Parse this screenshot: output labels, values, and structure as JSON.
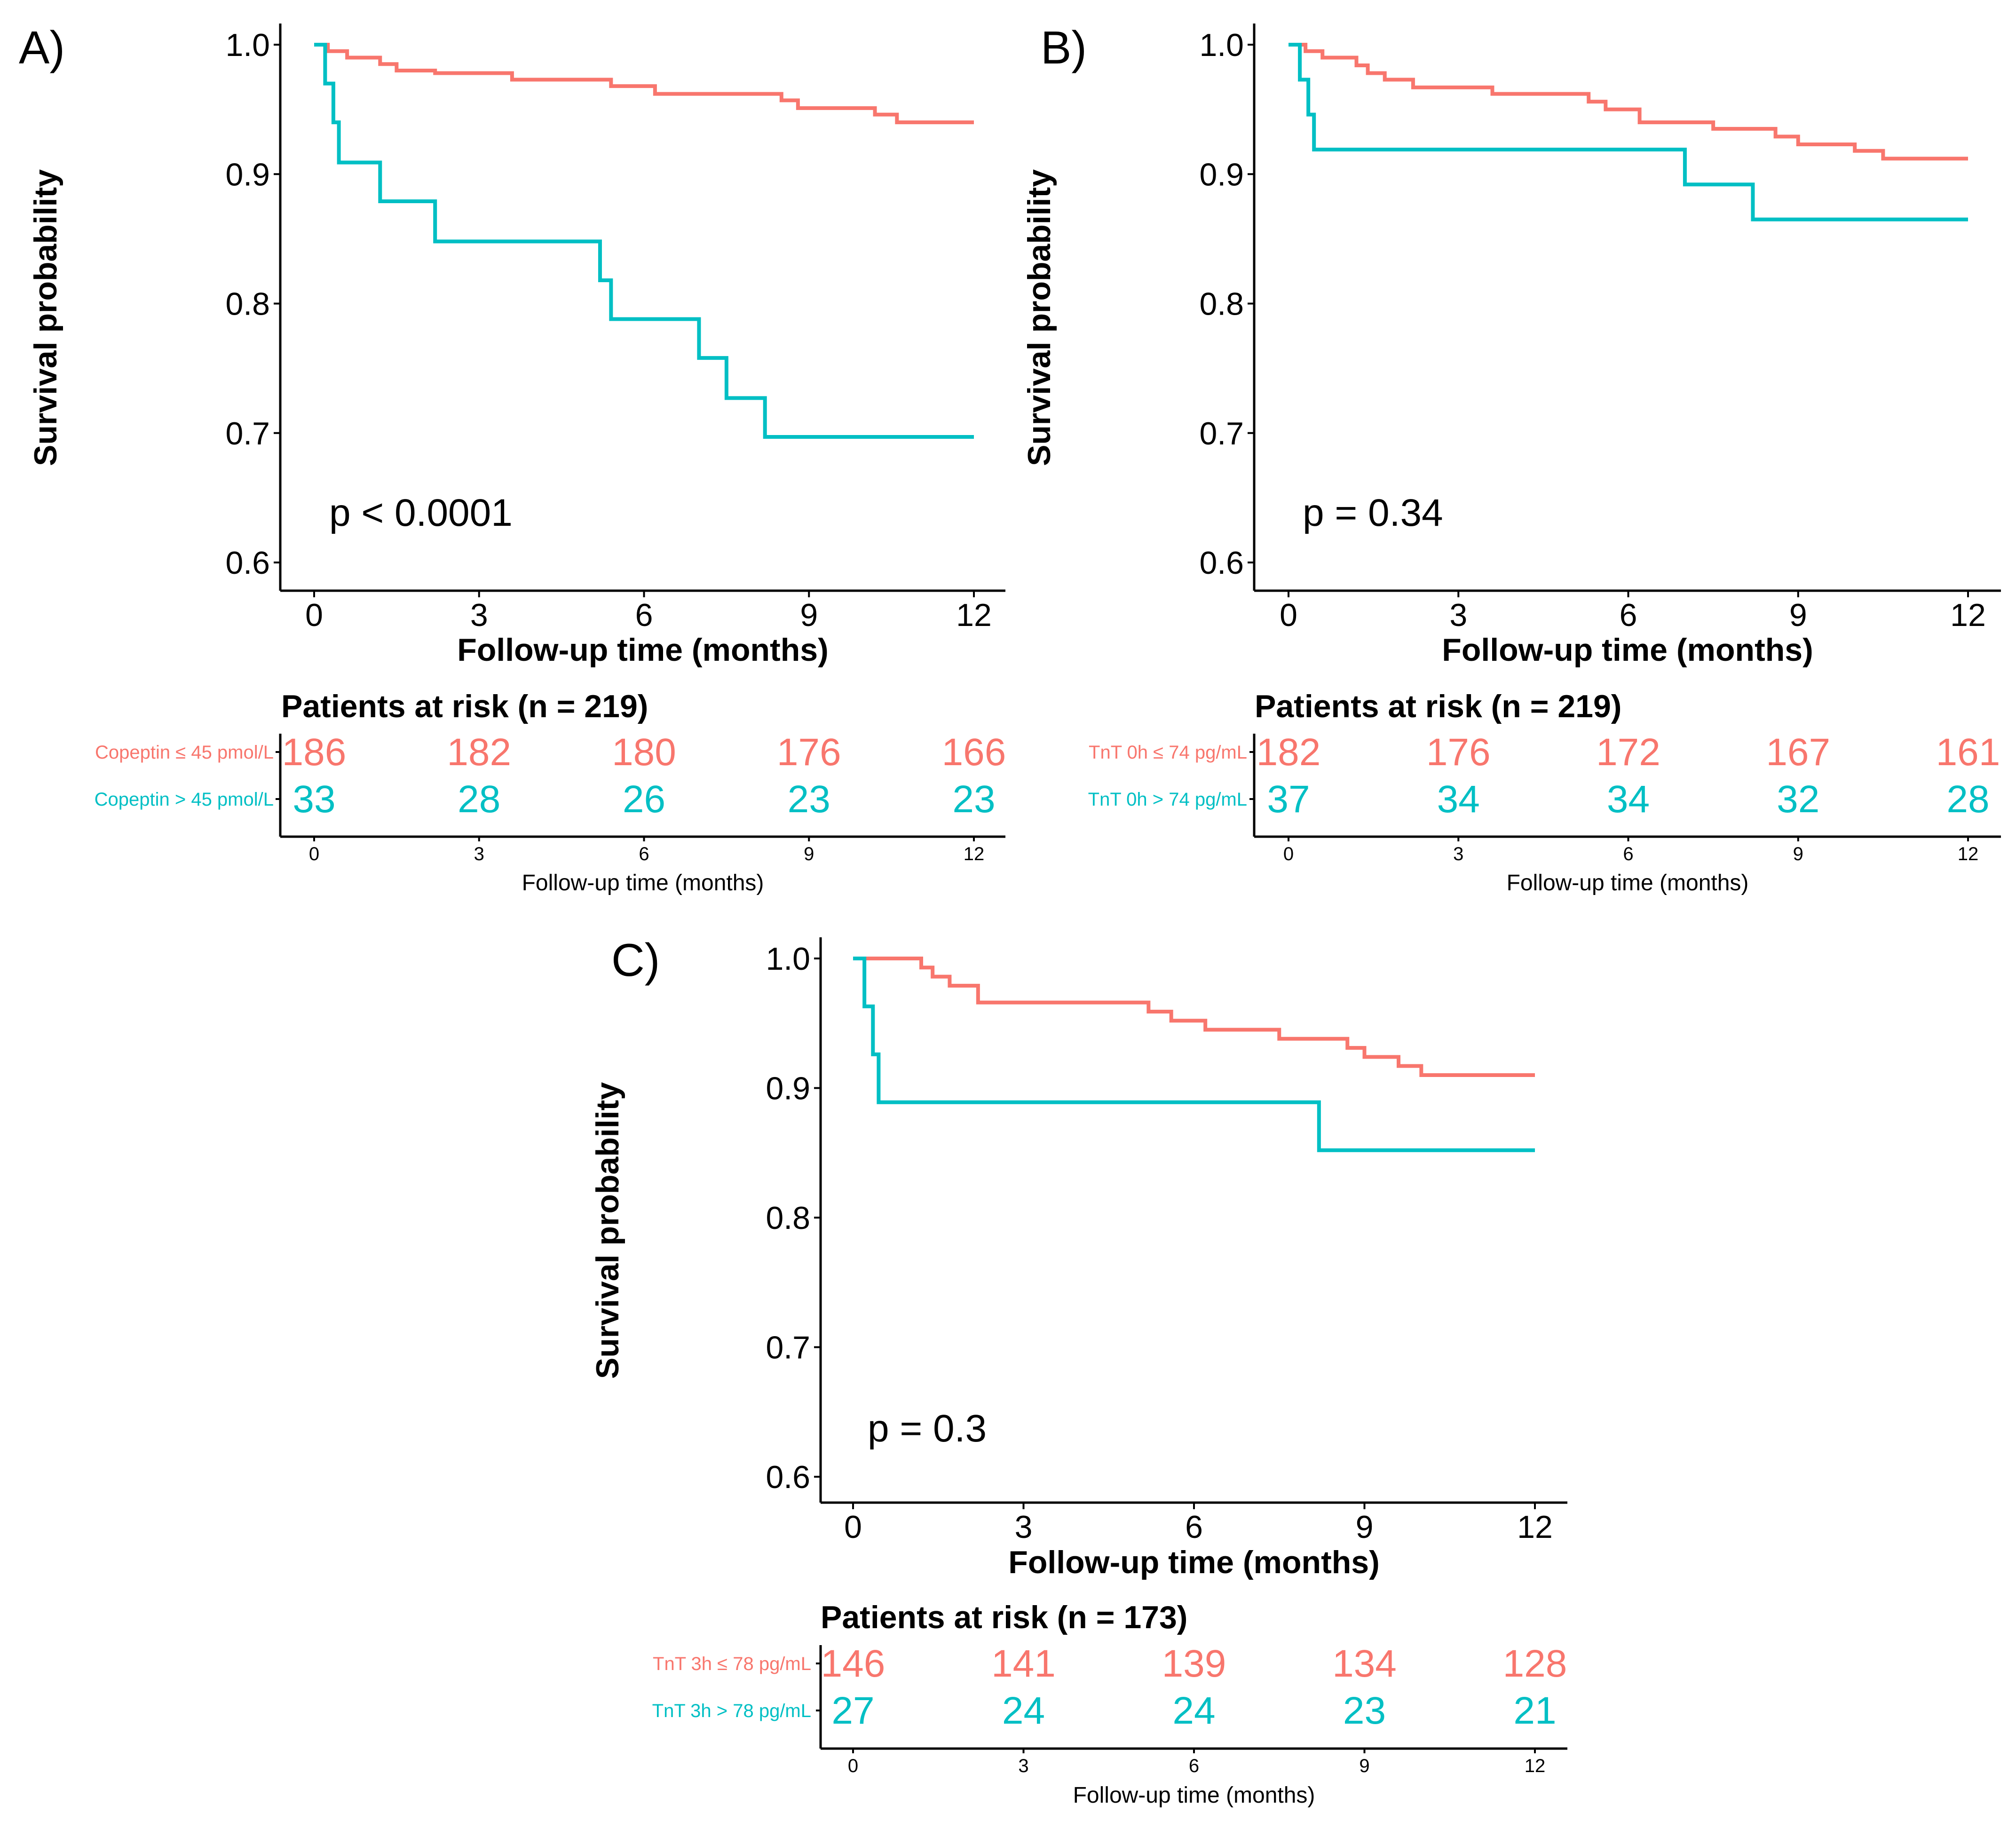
{
  "colors": {
    "series1": "#F8766D",
    "series2": "#00BFC4",
    "axis": "#000000"
  },
  "chart_data": [
    {
      "type": "line",
      "panel": "A)",
      "title": "",
      "xlabel": "Follow-up time (months)",
      "ylabel": "Survival probability",
      "xlim": [
        0,
        12
      ],
      "ylim": [
        0.6,
        1.0
      ],
      "xticks": [
        "0",
        "3",
        "6",
        "9",
        "12"
      ],
      "yticks": [
        "0.6",
        "0.7",
        "0.8",
        "0.9",
        "1.0"
      ],
      "p_value": "p < 0.0001",
      "series": [
        {
          "name": "Copeptin ≤ 45 pmol/L",
          "color": "#F8766D",
          "x": [
            0,
            0.25,
            0.6,
            1.2,
            1.5,
            2.2,
            3.6,
            5.4,
            6.2,
            8.5,
            8.8,
            10.2,
            10.6,
            12
          ],
          "y": [
            1.0,
            0.995,
            0.99,
            0.985,
            0.98,
            0.978,
            0.973,
            0.968,
            0.962,
            0.957,
            0.951,
            0.946,
            0.94,
            0.94
          ]
        },
        {
          "name": "Copeptin > 45 pmol/L",
          "color": "#00BFC4",
          "x": [
            0,
            0.2,
            0.35,
            0.45,
            1.2,
            2.2,
            5.2,
            5.4,
            7.0,
            7.5,
            8.2,
            12
          ],
          "y": [
            1.0,
            0.97,
            0.94,
            0.909,
            0.879,
            0.848,
            0.818,
            0.788,
            0.758,
            0.727,
            0.697,
            0.697
          ]
        }
      ],
      "risk_table": {
        "title": "Patients at risk (n = 219)",
        "xlabel": "Follow-up time (months)",
        "xticks": [
          "0",
          "3",
          "6",
          "9",
          "12"
        ],
        "rows": [
          {
            "label": "Copeptin ≤ 45 pmol/L",
            "color": "#F8766D",
            "values": [
              "186",
              "182",
              "180",
              "176",
              "166"
            ]
          },
          {
            "label": "Copeptin > 45 pmol/L",
            "color": "#00BFC4",
            "values": [
              "33",
              "28",
              "26",
              "23",
              "23"
            ]
          }
        ]
      }
    },
    {
      "type": "line",
      "panel": "B)",
      "title": "",
      "xlabel": "Follow-up time (months)",
      "ylabel": "Survival probability",
      "xlim": [
        0,
        12
      ],
      "ylim": [
        0.6,
        1.0
      ],
      "xticks": [
        "0",
        "3",
        "6",
        "9",
        "12"
      ],
      "yticks": [
        "0.6",
        "0.7",
        "0.8",
        "0.9",
        "1.0"
      ],
      "p_value": "p = 0.34",
      "series": [
        {
          "name": "TnT 0h ≤ 74 pg/mL",
          "color": "#F8766D",
          "x": [
            0,
            0.3,
            0.6,
            1.2,
            1.4,
            1.7,
            2.2,
            3.6,
            5.3,
            5.6,
            6.2,
            7.5,
            8.6,
            9.0,
            10.0,
            10.5,
            11.0,
            12
          ],
          "y": [
            1.0,
            0.995,
            0.99,
            0.984,
            0.978,
            0.973,
            0.967,
            0.962,
            0.956,
            0.95,
            0.94,
            0.935,
            0.929,
            0.923,
            0.918,
            0.912,
            0.912,
            0.912
          ]
        },
        {
          "name": "TnT 0h > 74 pg/mL",
          "color": "#00BFC4",
          "x": [
            0,
            0.2,
            0.35,
            0.45,
            7.0,
            8.2,
            12
          ],
          "y": [
            1.0,
            0.973,
            0.946,
            0.919,
            0.892,
            0.865,
            0.865
          ]
        }
      ],
      "risk_table": {
        "title": "Patients at risk (n = 219)",
        "xlabel": "Follow-up time (months)",
        "xticks": [
          "0",
          "3",
          "6",
          "9",
          "12"
        ],
        "rows": [
          {
            "label": "TnT 0h ≤ 74 pg/mL",
            "color": "#F8766D",
            "values": [
              "182",
              "176",
              "172",
              "167",
              "161"
            ]
          },
          {
            "label": "TnT 0h > 74 pg/mL",
            "color": "#00BFC4",
            "values": [
              "37",
              "34",
              "34",
              "32",
              "28"
            ]
          }
        ]
      }
    },
    {
      "type": "line",
      "panel": "C)",
      "title": "",
      "xlabel": "Follow-up time (months)",
      "ylabel": "Survival probability",
      "xlim": [
        0,
        12
      ],
      "ylim": [
        0.6,
        1.0
      ],
      "xticks": [
        "0",
        "3",
        "6",
        "9",
        "12"
      ],
      "yticks": [
        "0.6",
        "0.7",
        "0.8",
        "0.9",
        "1.0"
      ],
      "p_value": "p = 0.3",
      "series": [
        {
          "name": "TnT 3h ≤ 78 pg/mL",
          "color": "#F8766D",
          "x": [
            0,
            1.2,
            1.4,
            1.7,
            2.2,
            5.2,
            5.6,
            6.2,
            7.5,
            8.7,
            9.0,
            9.6,
            10.0,
            10.5,
            12
          ],
          "y": [
            1.0,
            0.993,
            0.986,
            0.979,
            0.966,
            0.959,
            0.952,
            0.945,
            0.938,
            0.931,
            0.924,
            0.917,
            0.91,
            0.91,
            0.91
          ]
        },
        {
          "name": "TnT 3h > 78 pg/mL",
          "color": "#00BFC4",
          "x": [
            0,
            0.2,
            0.35,
            0.45,
            8.2,
            12
          ],
          "y": [
            1.0,
            0.963,
            0.926,
            0.889,
            0.852,
            0.852
          ]
        }
      ],
      "risk_table": {
        "title": "Patients at risk (n = 173)",
        "xlabel": "Follow-up time (months)",
        "xticks": [
          "0",
          "3",
          "6",
          "9",
          "12"
        ],
        "rows": [
          {
            "label": "TnT 3h ≤ 78 pg/mL",
            "color": "#F8766D",
            "values": [
              "146",
              "141",
              "139",
              "134",
              "128"
            ]
          },
          {
            "label": "TnT 3h > 78 pg/mL",
            "color": "#00BFC4",
            "values": [
              "27",
              "24",
              "24",
              "23",
              "21"
            ]
          }
        ]
      }
    }
  ]
}
